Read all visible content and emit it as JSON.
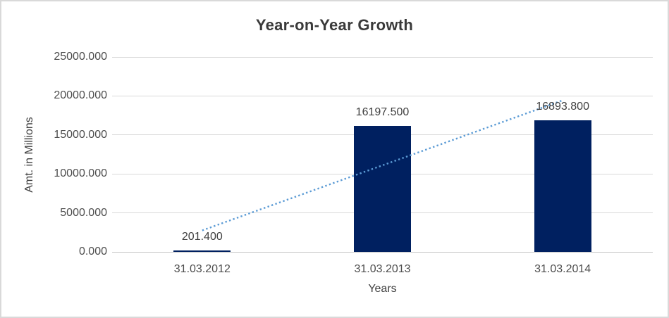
{
  "chart_data": {
    "type": "bar",
    "title": "Year-on-Year Growth",
    "xlabel": "Years",
    "ylabel": "Amt. in Millions",
    "categories": [
      "31.03.2012",
      "31.03.2013",
      "31.03.2014"
    ],
    "values": [
      201.4,
      16197.5,
      16893.8
    ],
    "data_labels": [
      "201.400",
      "16197.500",
      "16893.800"
    ],
    "ylim": [
      0,
      25000
    ],
    "ytick_step": 5000,
    "ytick_labels": [
      "0.000",
      "5000.000",
      "10000.000",
      "15000.000",
      "20000.000",
      "25000.000"
    ],
    "grid": true,
    "legend_position": "none",
    "trendline": {
      "type": "linear",
      "style": "dotted"
    },
    "colors": {
      "bar": "#002060",
      "trendline": "#5B9BD5",
      "gridline": "#D9D9D9",
      "axis_line": "#C6C6C6",
      "title_text": "#3A3A3A",
      "label_text": "#404040",
      "tick_text": "#4D4D4D",
      "border": "#D9D9D9",
      "background": "#FFFFFF"
    }
  }
}
